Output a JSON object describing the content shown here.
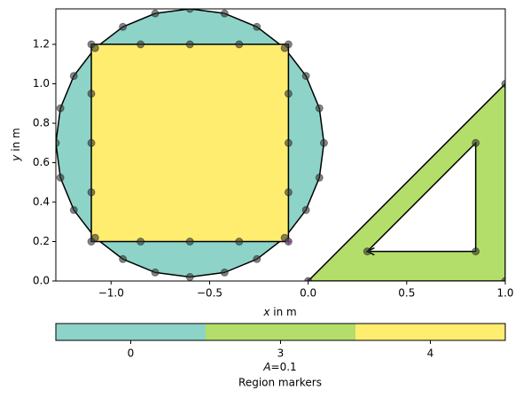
{
  "chart_data": {
    "type": "mesh",
    "xlabel": {
      "symbol": "x",
      "text": " in m"
    },
    "ylabel": {
      "symbol": "y",
      "text": " in m"
    },
    "xlim": [
      -1.28,
      1.0
    ],
    "ylim": [
      0,
      1.38
    ],
    "xticks": [
      {
        "value": -1.0,
        "label": "−1.0"
      },
      {
        "value": -0.5,
        "label": "−0.5"
      },
      {
        "value": 0,
        "label": "0.0"
      },
      0.5,
      {
        "value": 1.0,
        "label": "1.0"
      }
    ],
    "yticks": [
      {
        "value": 0,
        "label": "0.0"
      },
      0.2,
      0.4,
      0.6,
      0.8,
      {
        "value": 1.0,
        "label": "1.0"
      },
      1.2
    ],
    "regions": [
      {
        "marker": 0,
        "color": "#8dd3c7",
        "circle": {
          "center": [
            -0.6,
            0.7
          ],
          "radius": 0.68,
          "segments": 24
        }
      },
      {
        "marker": 3,
        "color": "#b3de69",
        "polygon": [
          [
            0,
            0
          ],
          [
            1,
            0
          ],
          [
            1,
            1
          ]
        ],
        "hole": [
          [
            0.3,
            0.15
          ],
          [
            0.85,
            0.15
          ],
          [
            0.85,
            0.7
          ]
        ],
        "subdivisions": 1
      },
      {
        "marker": 4,
        "color": "#ffed6f",
        "polygon": [
          [
            -1.1,
            0.2
          ],
          [
            -0.1,
            0.2
          ],
          [
            -0.1,
            1.2
          ],
          [
            -1.1,
            1.2
          ]
        ],
        "subdivisions": 4
      }
    ],
    "region_points": {
      "color": "#7b2d8e",
      "x": [
        -0.1,
        0
      ],
      "y": [
        0.2,
        0
      ]
    },
    "colorbar_label": {
      "symbol": "A",
      "text": "=0.1"
    },
    "colorbar_title": "Region markers"
  }
}
